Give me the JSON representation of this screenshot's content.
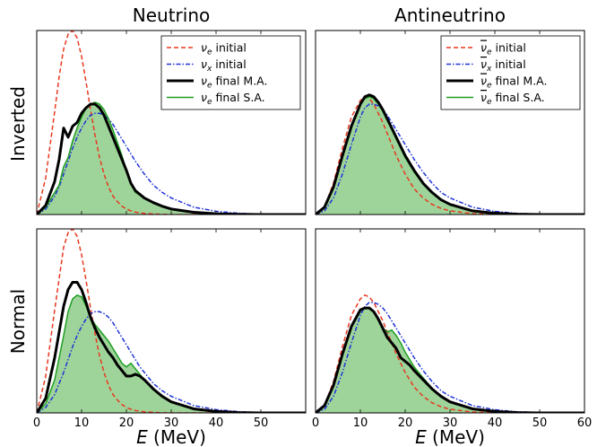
{
  "chart_data": {
    "type": "line",
    "columns": [
      "Neutrino",
      "Antineutrino"
    ],
    "rows": [
      "Inverted",
      "Normal"
    ],
    "xlabel_var": "E",
    "xlabel_unit": " (MeV)",
    "xlim": [
      0,
      60
    ],
    "ylim": [
      0,
      1.0
    ],
    "xticks_left": [
      "0",
      "10",
      "20",
      "30",
      "40",
      "50"
    ],
    "xticks_right": [
      "0",
      "10",
      "20",
      "30",
      "40",
      "50",
      "60"
    ],
    "colors": {
      "initial_e": "#e8381f",
      "initial_x": "#2034d6",
      "final_ma": "#000000",
      "final_sa": "#1f9e22",
      "fill": "#9ed49a"
    },
    "legends": {
      "neutrino": [
        {
          "sym": "ν",
          "sub": "e",
          "bar": false,
          "text": " initial",
          "style": "initial_e"
        },
        {
          "sym": "ν",
          "sub": "x",
          "bar": false,
          "text": " initial",
          "style": "initial_x"
        },
        {
          "sym": "ν",
          "sub": "e",
          "bar": false,
          "text": " final M.A.",
          "style": "final_ma"
        },
        {
          "sym": "ν",
          "sub": "e",
          "bar": false,
          "text": " final S.A.",
          "style": "final_sa"
        }
      ],
      "antineutrino": [
        {
          "sym": "ν",
          "sub": "e",
          "bar": true,
          "text": " initial",
          "style": "initial_e"
        },
        {
          "sym": "ν",
          "sub": "x",
          "bar": true,
          "text": " initial",
          "style": "initial_x"
        },
        {
          "sym": "ν",
          "sub": "e",
          "bar": true,
          "text": " final M.A.",
          "style": "final_ma"
        },
        {
          "sym": "ν",
          "sub": "e",
          "bar": true,
          "text": " final S.A.",
          "style": "final_sa"
        }
      ]
    },
    "panels": [
      {
        "id": "inverted-neutrino",
        "x": [
          0,
          2,
          4,
          5,
          6,
          7,
          8,
          9,
          10,
          11,
          12,
          13,
          14,
          15,
          16,
          17,
          18,
          19,
          20,
          21,
          22,
          24,
          26,
          28,
          30,
          35,
          40,
          45,
          50,
          55,
          60
        ],
        "series": {
          "initial_e": [
            0,
            0.2,
            0.56,
            0.75,
            0.9,
            0.98,
            1.0,
            0.96,
            0.86,
            0.72,
            0.57,
            0.43,
            0.31,
            0.22,
            0.15,
            0.1,
            0.07,
            0.045,
            0.03,
            0.02,
            0.013,
            0.006,
            0.003,
            0.001,
            0,
            0,
            0,
            0,
            0,
            0,
            0
          ],
          "initial_x": [
            0,
            0.03,
            0.1,
            0.15,
            0.22,
            0.29,
            0.36,
            0.42,
            0.47,
            0.51,
            0.54,
            0.55,
            0.55,
            0.54,
            0.52,
            0.49,
            0.45,
            0.41,
            0.37,
            0.33,
            0.29,
            0.22,
            0.16,
            0.12,
            0.09,
            0.04,
            0.018,
            0.007,
            0.002,
            0,
            0
          ],
          "final_ma": [
            0,
            0.05,
            0.18,
            0.3,
            0.47,
            0.42,
            0.48,
            0.5,
            0.55,
            0.58,
            0.6,
            0.6,
            0.58,
            0.54,
            0.48,
            0.42,
            0.36,
            0.3,
            0.24,
            0.17,
            0.13,
            0.09,
            0.065,
            0.045,
            0.03,
            0.012,
            0.004,
            0.001,
            0,
            0,
            0
          ],
          "final_sa": [
            0,
            0.04,
            0.12,
            0.16,
            0.26,
            0.31,
            0.4,
            0.47,
            0.53,
            0.58,
            0.6,
            0.61,
            0.6,
            0.57,
            0.52,
            0.46,
            0.39,
            0.32,
            0.24,
            0.17,
            0.12,
            0.09,
            0.065,
            0.045,
            0.03,
            0.012,
            0.004,
            0.001,
            0,
            0,
            0
          ]
        }
      },
      {
        "id": "inverted-antineutrino",
        "x": [
          0,
          2,
          4,
          6,
          8,
          10,
          11,
          12,
          13,
          14,
          15,
          16,
          17,
          18,
          19,
          20,
          22,
          24,
          26,
          28,
          30,
          35,
          40,
          45,
          50,
          55,
          60
        ],
        "series": {
          "initial_e": [
            0,
            0.04,
            0.17,
            0.36,
            0.53,
            0.62,
            0.64,
            0.63,
            0.6,
            0.55,
            0.5,
            0.44,
            0.38,
            0.32,
            0.27,
            0.22,
            0.14,
            0.09,
            0.055,
            0.033,
            0.02,
            0.005,
            0.001,
            0,
            0,
            0,
            0
          ],
          "initial_x": [
            0,
            0.02,
            0.09,
            0.22,
            0.38,
            0.53,
            0.58,
            0.6,
            0.6,
            0.59,
            0.57,
            0.54,
            0.5,
            0.46,
            0.42,
            0.38,
            0.3,
            0.23,
            0.17,
            0.12,
            0.09,
            0.04,
            0.017,
            0.006,
            0.002,
            0,
            0
          ],
          "final_ma": [
            0,
            0.04,
            0.15,
            0.32,
            0.48,
            0.6,
            0.64,
            0.65,
            0.64,
            0.61,
            0.57,
            0.52,
            0.47,
            0.42,
            0.37,
            0.32,
            0.24,
            0.17,
            0.12,
            0.08,
            0.055,
            0.02,
            0.007,
            0.002,
            0,
            0,
            0
          ],
          "final_sa": [
            0,
            0.04,
            0.15,
            0.32,
            0.48,
            0.6,
            0.63,
            0.64,
            0.63,
            0.6,
            0.56,
            0.51,
            0.46,
            0.41,
            0.36,
            0.31,
            0.23,
            0.165,
            0.115,
            0.078,
            0.052,
            0.019,
            0.006,
            0.002,
            0,
            0,
            0
          ]
        }
      },
      {
        "id": "normal-neutrino",
        "x": [
          0,
          2,
          4,
          6,
          7,
          8,
          9,
          10,
          11,
          12,
          13,
          14,
          15,
          16,
          17,
          18,
          19,
          20,
          21,
          22,
          23,
          24,
          26,
          28,
          30,
          35,
          40,
          45,
          50,
          55,
          60
        ],
        "series": {
          "initial_e": [
            0,
            0.2,
            0.56,
            0.9,
            0.98,
            1.0,
            0.96,
            0.86,
            0.72,
            0.57,
            0.43,
            0.31,
            0.22,
            0.15,
            0.1,
            0.07,
            0.045,
            0.03,
            0.02,
            0.013,
            0.009,
            0.006,
            0.003,
            0.001,
            0,
            0,
            0,
            0,
            0,
            0,
            0
          ],
          "initial_x": [
            0,
            0.03,
            0.1,
            0.22,
            0.29,
            0.36,
            0.42,
            0.47,
            0.51,
            0.54,
            0.55,
            0.55,
            0.54,
            0.52,
            0.49,
            0.45,
            0.41,
            0.37,
            0.33,
            0.29,
            0.25,
            0.22,
            0.16,
            0.12,
            0.09,
            0.04,
            0.018,
            0.007,
            0.002,
            0,
            0
          ],
          "final_ma": [
            0,
            0.08,
            0.3,
            0.58,
            0.67,
            0.71,
            0.71,
            0.67,
            0.6,
            0.52,
            0.46,
            0.41,
            0.37,
            0.33,
            0.3,
            0.26,
            0.23,
            0.2,
            0.2,
            0.21,
            0.2,
            0.18,
            0.13,
            0.09,
            0.06,
            0.022,
            0.008,
            0.002,
            0,
            0,
            0
          ],
          "final_sa": [
            0,
            0.05,
            0.18,
            0.42,
            0.55,
            0.62,
            0.64,
            0.63,
            0.58,
            0.52,
            0.48,
            0.45,
            0.42,
            0.39,
            0.35,
            0.31,
            0.27,
            0.25,
            0.27,
            0.24,
            0.21,
            0.18,
            0.13,
            0.09,
            0.06,
            0.022,
            0.008,
            0.002,
            0,
            0,
            0
          ]
        }
      },
      {
        "id": "normal-antineutrino",
        "x": [
          0,
          2,
          4,
          6,
          8,
          10,
          11,
          12,
          13,
          14,
          15,
          16,
          17,
          18,
          19,
          20,
          21,
          22,
          24,
          26,
          28,
          30,
          35,
          40,
          45,
          50,
          55,
          60
        ],
        "series": {
          "initial_e": [
            0,
            0.04,
            0.17,
            0.36,
            0.53,
            0.62,
            0.64,
            0.63,
            0.6,
            0.55,
            0.5,
            0.44,
            0.38,
            0.32,
            0.27,
            0.22,
            0.18,
            0.14,
            0.09,
            0.055,
            0.033,
            0.02,
            0.005,
            0.001,
            0,
            0,
            0,
            0
          ],
          "initial_x": [
            0,
            0.02,
            0.09,
            0.22,
            0.38,
            0.53,
            0.58,
            0.6,
            0.6,
            0.59,
            0.57,
            0.54,
            0.5,
            0.46,
            0.42,
            0.38,
            0.34,
            0.3,
            0.23,
            0.17,
            0.12,
            0.09,
            0.04,
            0.017,
            0.006,
            0.002,
            0,
            0
          ],
          "final_ma": [
            0,
            0.04,
            0.15,
            0.32,
            0.47,
            0.56,
            0.57,
            0.57,
            0.55,
            0.51,
            0.46,
            0.41,
            0.38,
            0.35,
            0.3,
            0.28,
            0.26,
            0.23,
            0.18,
            0.13,
            0.09,
            0.06,
            0.022,
            0.008,
            0.002,
            0,
            0,
            0
          ],
          "final_sa": [
            0,
            0.04,
            0.15,
            0.32,
            0.47,
            0.56,
            0.57,
            0.57,
            0.55,
            0.51,
            0.46,
            0.44,
            0.45,
            0.42,
            0.38,
            0.33,
            0.29,
            0.25,
            0.19,
            0.135,
            0.092,
            0.062,
            0.023,
            0.008,
            0.002,
            0,
            0,
            0
          ]
        }
      }
    ]
  }
}
